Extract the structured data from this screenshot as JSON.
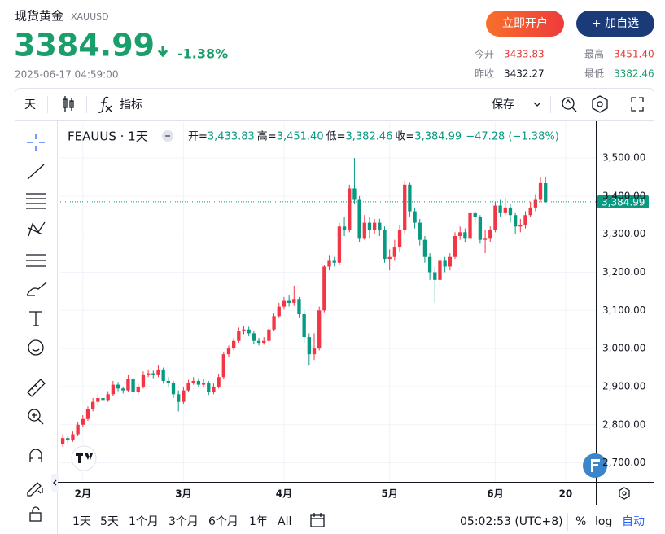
{
  "header": {
    "title": "现货黄金",
    "symbol": "XAUUSD",
    "price": "3384.99",
    "change": "-1.38%",
    "time": "2025-06-17 04:59:00",
    "buttons": [
      "立即开户",
      "+ 加自选"
    ],
    "stats": [
      {
        "label": "今开",
        "value": "3433.83",
        "color": "#e53935"
      },
      {
        "label": "最高",
        "value": "3451.40",
        "color": "#e53935"
      },
      {
        "label": "昨收",
        "value": "3432.27",
        "color": "#131722"
      },
      {
        "label": "最低",
        "value": "3382.46",
        "color": "#1a9e6a"
      }
    ]
  },
  "toolbar": {
    "interval": "天",
    "indicators": "指标",
    "save": "保存"
  },
  "chart_data": {
    "type": "candlestick",
    "symbol": "FEAUUS · 1天",
    "ohlc_legend": [
      {
        "k": "开=",
        "v": "3,433.83"
      },
      {
        "k": "高=",
        "v": "3,451.40"
      },
      {
        "k": "低=",
        "v": "3,382.46"
      },
      {
        "k": "收=",
        "v": "3,384.99"
      }
    ],
    "change": "−47.28 (−1.38%)",
    "open": [
      2750,
      2765,
      2760,
      2775,
      2800,
      2815,
      2840,
      2860,
      2870,
      2865,
      2880,
      2905,
      2895,
      2890,
      2920,
      2885,
      2900,
      2930,
      2935,
      2930,
      2945,
      2915,
      2910,
      2880,
      2860,
      2890,
      2910,
      2915,
      2905,
      2910,
      2885,
      2900,
      2925,
      2985,
      3000,
      3020,
      3045,
      3050,
      3040,
      3020,
      3015,
      3020,
      3050,
      3085,
      3110,
      3125,
      3120,
      3130,
      3090,
      3030,
      2985,
      3000,
      3100,
      3215,
      3230,
      3225,
      3320,
      3310,
      3420,
      3390,
      3290,
      3330,
      3310,
      3330,
      3310,
      3235,
      3240,
      3265,
      3310,
      3430,
      3360,
      3330,
      3285,
      3240,
      3200,
      3180,
      3230,
      3215,
      3240,
      3295,
      3305,
      3290,
      3355,
      3345,
      3285,
      3290,
      3310,
      3375,
      3355,
      3370,
      3350,
      3320,
      3325,
      3350,
      3370,
      3390,
      3433.83
    ],
    "high": [
      2775,
      2772,
      2782,
      2808,
      2825,
      2848,
      2870,
      2880,
      2878,
      2888,
      2915,
      2912,
      2900,
      2930,
      2925,
      2908,
      2940,
      2945,
      2942,
      2955,
      2950,
      2925,
      2915,
      2890,
      2898,
      2918,
      2925,
      2922,
      2920,
      2915,
      2908,
      2932,
      2992,
      3008,
      3028,
      3055,
      3058,
      3057,
      3045,
      3028,
      3030,
      3058,
      3092,
      3120,
      3135,
      3140,
      3165,
      3135,
      3100,
      3040,
      3040,
      3110,
      3220,
      3245,
      3240,
      3330,
      3345,
      3430,
      3500,
      3400,
      3350,
      3345,
      3340,
      3340,
      3320,
      3260,
      3285,
      3325,
      3440,
      3435,
      3370,
      3340,
      3295,
      3250,
      3215,
      3240,
      3240,
      3250,
      3305,
      3320,
      3315,
      3365,
      3360,
      3350,
      3310,
      3320,
      3385,
      3390,
      3395,
      3380,
      3355,
      3340,
      3360,
      3385,
      3405,
      3450,
      3451.4
    ],
    "low": [
      2742,
      2752,
      2755,
      2770,
      2795,
      2810,
      2835,
      2850,
      2855,
      2860,
      2875,
      2888,
      2882,
      2885,
      2878,
      2880,
      2895,
      2925,
      2922,
      2925,
      2908,
      2900,
      2870,
      2835,
      2855,
      2885,
      2905,
      2898,
      2898,
      2878,
      2880,
      2895,
      2920,
      2978,
      2995,
      3015,
      3038,
      3032,
      3012,
      3008,
      3010,
      3015,
      3045,
      3080,
      3102,
      3110,
      3112,
      3080,
      3015,
      2955,
      2970,
      2995,
      3095,
      3205,
      3215,
      3220,
      3295,
      3305,
      3380,
      3280,
      3285,
      3290,
      3300,
      3295,
      3225,
      3205,
      3230,
      3255,
      3300,
      3345,
      3315,
      3270,
      3225,
      3180,
      3120,
      3155,
      3200,
      3205,
      3235,
      3285,
      3280,
      3285,
      3330,
      3275,
      3250,
      3280,
      3305,
      3345,
      3350,
      3330,
      3300,
      3305,
      3315,
      3345,
      3360,
      3385,
      3382.46
    ],
    "close": [
      2765,
      2760,
      2775,
      2800,
      2815,
      2840,
      2860,
      2870,
      2865,
      2880,
      2905,
      2895,
      2890,
      2920,
      2885,
      2900,
      2930,
      2935,
      2930,
      2945,
      2915,
      2910,
      2880,
      2860,
      2890,
      2910,
      2915,
      2905,
      2910,
      2885,
      2900,
      2925,
      2985,
      3000,
      3020,
      3045,
      3050,
      3040,
      3020,
      3015,
      3020,
      3050,
      3085,
      3110,
      3125,
      3120,
      3130,
      3090,
      3030,
      2985,
      3000,
      3100,
      3215,
      3230,
      3225,
      3320,
      3310,
      3420,
      3390,
      3290,
      3330,
      3310,
      3330,
      3310,
      3235,
      3240,
      3265,
      3310,
      3430,
      3360,
      3330,
      3285,
      3240,
      3200,
      3180,
      3230,
      3215,
      3240,
      3295,
      3305,
      3290,
      3355,
      3345,
      3285,
      3290,
      3310,
      3375,
      3355,
      3370,
      3350,
      3320,
      3325,
      3350,
      3370,
      3390,
      3434,
      3384.99
    ],
    "up_color": "#f23645",
    "down_color": "#089981",
    "ylim": [
      2650,
      3594
    ],
    "yticks": [
      {
        "value": 2700,
        "label": "2,700.00"
      },
      {
        "value": 2800,
        "label": "2,800.00"
      },
      {
        "value": 2900,
        "label": "2,900.00"
      },
      {
        "value": 3000,
        "label": "3,000.00"
      },
      {
        "value": 3100,
        "label": "3,100.00"
      },
      {
        "value": 3200,
        "label": "3,200.00"
      },
      {
        "value": 3300,
        "label": "3,300.00"
      },
      {
        "value": 3400,
        "label": "3,400.00"
      },
      {
        "value": 3500,
        "label": "3,500.00"
      }
    ],
    "xlim": [
      -0.5,
      106
    ],
    "xticks": [
      {
        "value": 4,
        "label": "2月"
      },
      {
        "value": 24,
        "label": "3月"
      },
      {
        "value": 44,
        "label": "4月"
      },
      {
        "value": 65,
        "label": "5月"
      },
      {
        "value": 86,
        "label": "6月"
      },
      {
        "value": 100,
        "label": "20"
      }
    ],
    "last_price": {
      "value": 3384.99,
      "label": "3,384.99"
    },
    "grid": true
  },
  "bottom_bar": {
    "ranges": [
      "1天",
      "5天",
      "1个月",
      "3个月",
      "6个月",
      "1年",
      "All"
    ],
    "clock": "05:02:53 (UTC+8)",
    "options": [
      "%",
      "log",
      "自动"
    ]
  }
}
